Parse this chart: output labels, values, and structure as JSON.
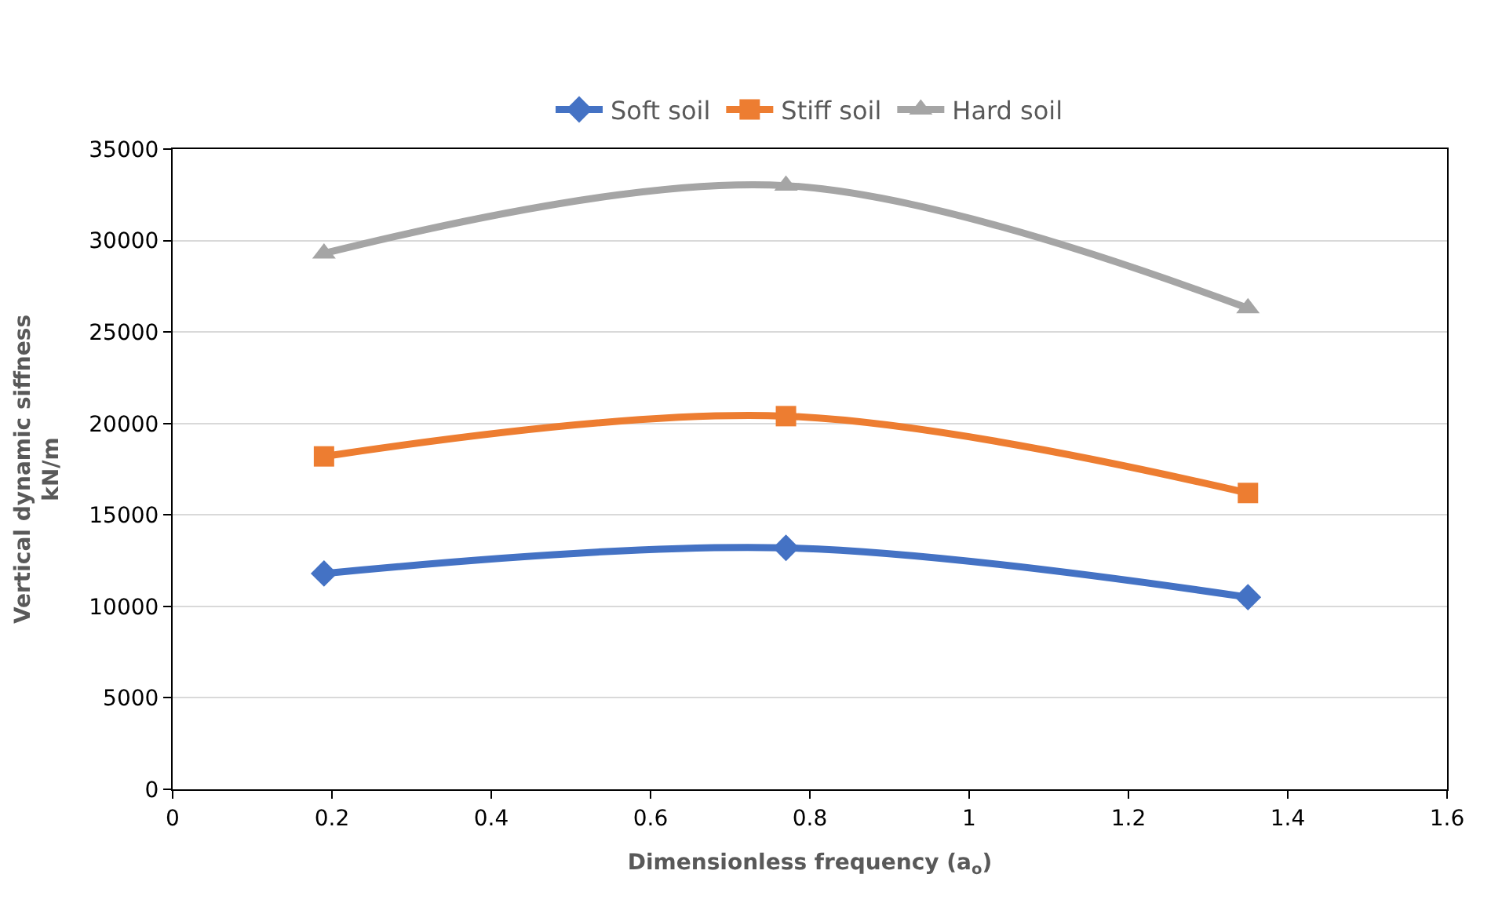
{
  "chart_data": {
    "type": "line",
    "xlabel": "Dimensionless frequency (a$_{o}$)",
    "ylabel": "Vertical dynamic siffness\nkN/m",
    "x": [
      0.19,
      0.77,
      1.35
    ],
    "series": [
      {
        "name": "Soft soil",
        "color": "#4472c4",
        "marker": "diamond",
        "values": [
          11800,
          13200,
          10500
        ]
      },
      {
        "name": "Stiff soil",
        "color": "#ed7d31",
        "marker": "square",
        "values": [
          18200,
          20400,
          16200
        ]
      },
      {
        "name": "Hard soil",
        "color": "#a5a5a5",
        "marker": "triangle",
        "values": [
          29300,
          33000,
          26300
        ]
      }
    ],
    "xlim": [
      0,
      1.6
    ],
    "xticks": [
      0,
      0.2,
      0.4,
      0.6,
      0.8,
      1,
      1.2,
      1.4,
      1.6
    ],
    "ylim": [
      0,
      35000
    ],
    "yticks": [
      0,
      5000,
      10000,
      15000,
      20000,
      25000,
      30000,
      35000
    ],
    "grid": "y",
    "legend": "top",
    "line_style": "solid"
  }
}
